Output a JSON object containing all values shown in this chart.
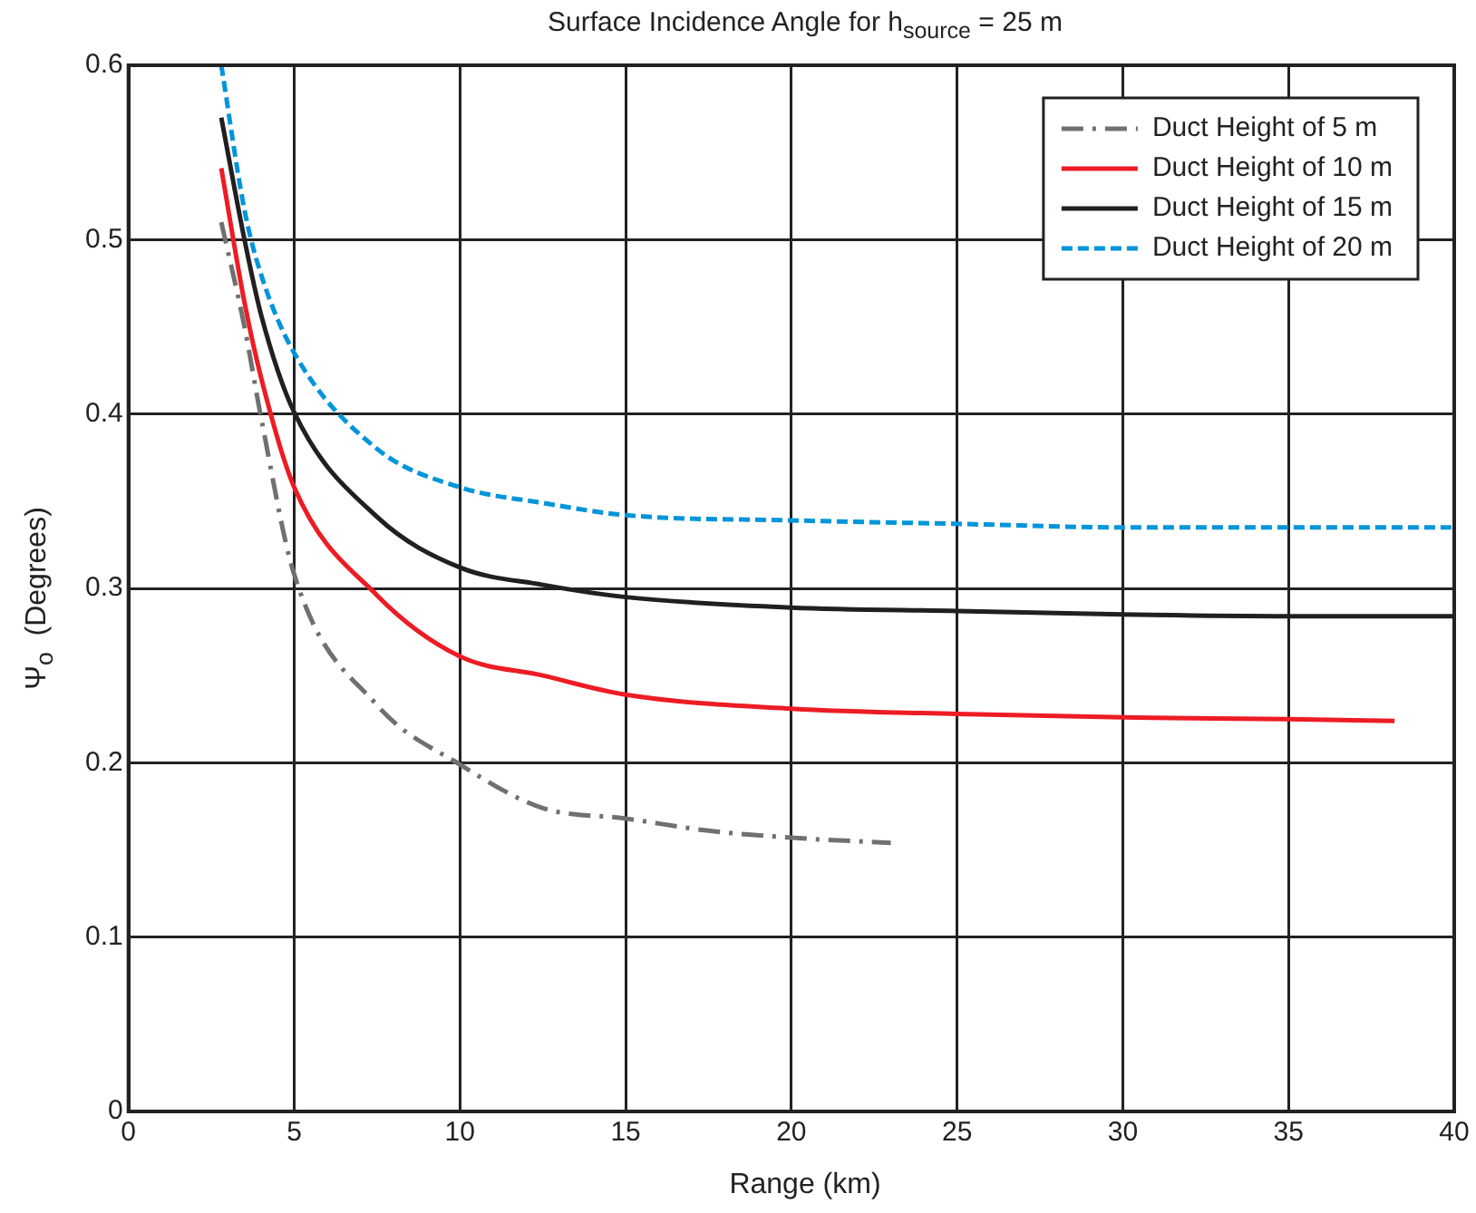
{
  "chart_data": {
    "type": "line",
    "title": "Surface Incidence Angle for h$_{source}$ = 25 m",
    "xlabel": "Range (km)",
    "ylabel": "Ψ$_{o}$  (Degrees)",
    "xlim": [
      0,
      40
    ],
    "xticks": [
      0,
      5,
      10,
      15,
      20,
      25,
      30,
      35,
      40
    ],
    "ylim": [
      0,
      0.6
    ],
    "yticks": [
      0,
      0.1,
      0.2,
      0.3,
      0.4,
      0.5,
      0.6
    ],
    "grid": true,
    "legend": "top right",
    "marker": "none",
    "series": [
      {
        "name": "Duct Height of 5 m",
        "color": "#707070",
        "line_style": "dashdot",
        "x": [
          2.8,
          3.5,
          4,
          5,
          7.5,
          10,
          12.5,
          15,
          17.5,
          20,
          23
        ],
        "values": [
          0.51,
          0.45,
          0.398,
          0.308,
          0.233,
          0.199,
          0.174,
          0.168,
          0.161,
          0.157,
          0.154
        ]
      },
      {
        "name": "Duct Height of 10 m",
        "color": "#ed1c24",
        "line_style": "solid",
        "x": [
          2.8,
          3.5,
          4,
          5,
          7.5,
          10,
          12.5,
          15,
          20,
          25,
          30,
          35,
          38.2
        ],
        "values": [
          0.541,
          0.464,
          0.421,
          0.358,
          0.296,
          0.261,
          0.25,
          0.239,
          0.231,
          0.228,
          0.226,
          0.225,
          0.224
        ]
      },
      {
        "name": "Duct Height of 15 m",
        "color": "#231f20",
        "line_style": "solid",
        "x": [
          2.8,
          3.5,
          4,
          5,
          7.5,
          10,
          12.5,
          15,
          20,
          25,
          30,
          35,
          40
        ],
        "values": [
          0.57,
          0.5,
          0.457,
          0.401,
          0.341,
          0.312,
          0.302,
          0.295,
          0.289,
          0.287,
          0.285,
          0.284,
          0.284
        ]
      },
      {
        "name": "Duct Height of 20 m",
        "color": "#0095d9",
        "line_style": "dashed",
        "x": [
          2.8,
          3.5,
          4,
          5,
          7.5,
          10,
          12.5,
          15,
          20,
          25,
          30,
          35,
          40
        ],
        "values": [
          0.6,
          0.517,
          0.48,
          0.435,
          0.38,
          0.358,
          0.349,
          0.342,
          0.339,
          0.337,
          0.335,
          0.335,
          0.335
        ]
      }
    ]
  }
}
